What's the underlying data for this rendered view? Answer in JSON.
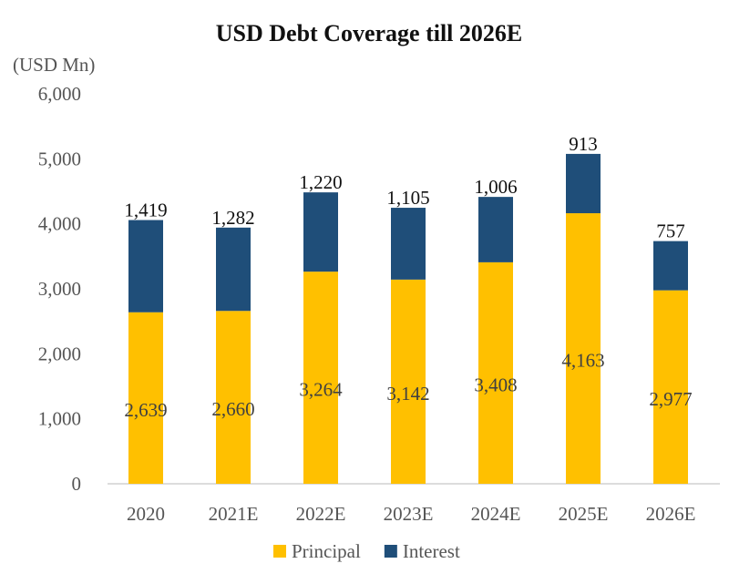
{
  "chart_data": {
    "type": "bar",
    "stacked": true,
    "title": "USD Debt Coverage till 2026E",
    "ylabel": "(USD Mn)",
    "xlabel": "",
    "ylim": [
      0,
      6000
    ],
    "yticks": [
      0,
      1000,
      2000,
      3000,
      4000,
      5000,
      6000
    ],
    "ytick_labels": [
      "0",
      "1,000",
      "2,000",
      "3,000",
      "4,000",
      "5,000",
      "6,000"
    ],
    "categories": [
      "2020",
      "2021E",
      "2022E",
      "2023E",
      "2024E",
      "2025E",
      "2026E"
    ],
    "series": [
      {
        "name": "Principal",
        "color": "#FFC000",
        "values": [
          2639,
          2660,
          3264,
          3142,
          3408,
          4163,
          2977
        ],
        "labels": [
          "2,639",
          "2,660",
          "3,264",
          "3,142",
          "3,408",
          "4,163",
          "2,977"
        ]
      },
      {
        "name": "Interest",
        "color": "#1F4E79",
        "values": [
          1419,
          1282,
          1220,
          1105,
          1006,
          913,
          757
        ],
        "labels": [
          "1,419",
          "1,282",
          "1,220",
          "1,105",
          "1,006",
          "913",
          "757"
        ]
      }
    ],
    "legend": "bottom",
    "grid": false
  }
}
